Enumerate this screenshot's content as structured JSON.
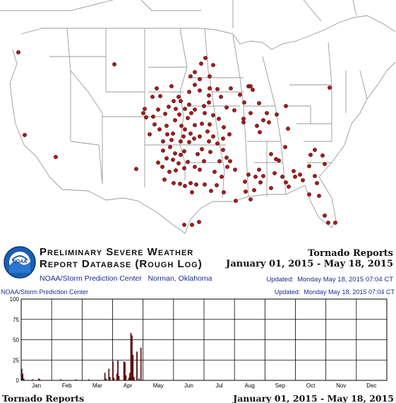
{
  "banner": {
    "title_line1": "Preliminary Severe Weather",
    "title_line2": "Report Database (Rough Log)",
    "organization": "NOAA/Storm Prediction Center   Norman, Oklahoma",
    "logo_text": "NOAA",
    "report_type": "Tornado Reports",
    "date_range": "January 01, 2015 - May 18, 2015",
    "updated": "Updated:  Monday May 18, 2015 07:04 CT"
  },
  "chart_header": {
    "left": "NOAA/Storm Prediction Center",
    "right": "Updated:  Monday May 18, 2015 07:04 CT"
  },
  "footer": {
    "left": "Tornado Reports",
    "right": "January 01, 2015 - May 18, 2015"
  },
  "map": {
    "dot_color": "#b01818",
    "outline_color": "#888888"
  },
  "chart_data": {
    "type": "bar",
    "title": "",
    "xlabel": "",
    "ylabel": "",
    "ylim": [
      0,
      100
    ],
    "yticks": [
      0,
      25,
      50,
      75,
      100
    ],
    "months": [
      "Jan",
      "Feb",
      "Mar",
      "Apr",
      "May",
      "Jun",
      "Jul",
      "Aug",
      "Sep",
      "Oct",
      "Nov",
      "Dec"
    ],
    "bar_color": "#c01818",
    "series": [
      {
        "values": [
          {
            "day": 1,
            "count": 14
          },
          {
            "day": 2,
            "count": 8
          },
          {
            "day": 3,
            "count": 2
          },
          {
            "day": 12,
            "count": 1
          },
          {
            "day": 18,
            "count": 2
          },
          {
            "day": 19,
            "count": 1
          },
          {
            "day": 40,
            "count": 1
          },
          {
            "day": 55,
            "count": 1
          },
          {
            "day": 68,
            "count": 1
          },
          {
            "day": 84,
            "count": 9
          },
          {
            "day": 85,
            "count": 2
          },
          {
            "day": 88,
            "count": 14
          },
          {
            "day": 89,
            "count": 4
          },
          {
            "day": 92,
            "count": 23
          },
          {
            "day": 93,
            "count": 3
          },
          {
            "day": 96,
            "count": 8
          },
          {
            "day": 97,
            "count": 24
          },
          {
            "day": 98,
            "count": 5
          },
          {
            "day": 103,
            "count": 23
          },
          {
            "day": 104,
            "count": 22
          },
          {
            "day": 105,
            "count": 6
          },
          {
            "day": 108,
            "count": 3
          },
          {
            "day": 109,
            "count": 9
          },
          {
            "day": 110,
            "count": 58
          },
          {
            "day": 111,
            "count": 55
          },
          {
            "day": 112,
            "count": 31
          },
          {
            "day": 113,
            "count": 4
          },
          {
            "day": 116,
            "count": 35
          },
          {
            "day": 118,
            "count": 2
          },
          {
            "day": 120,
            "count": 40
          }
        ]
      }
    ]
  }
}
